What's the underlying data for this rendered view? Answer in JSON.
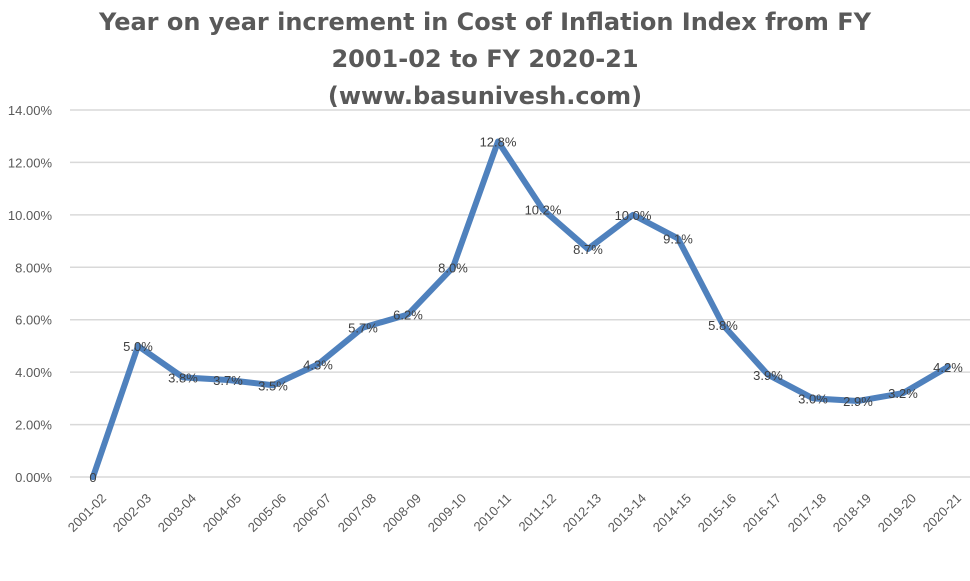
{
  "chart_data": {
    "type": "line",
    "title_lines": [
      "Year on year increment in Cost of Inflation Index from FY",
      "2001-02 to FY 2020-21",
      "(www.basunivesh.com)"
    ],
    "categories": [
      "2001-02",
      "2002-03",
      "2003-04",
      "2004-05",
      "2005-06",
      "2006-07",
      "2007-08",
      "2008-09",
      "2009-10",
      "2010-11",
      "2011-12",
      "2012-13",
      "2013-14",
      "2014-15",
      "2015-16",
      "2016-17",
      "2017-18",
      "2018-19",
      "2019-20",
      "2020-21"
    ],
    "values": [
      0,
      5.0,
      3.8,
      3.7,
      3.5,
      4.3,
      5.7,
      6.2,
      8.0,
      12.8,
      10.2,
      8.7,
      10.0,
      9.1,
      5.8,
      3.9,
      3.0,
      2.9,
      3.2,
      4.2
    ],
    "data_labels": [
      "0",
      "5.0%",
      "3.8%",
      "3.7%",
      "3.5%",
      "4.3%",
      "5.7%",
      "6.2%",
      "8.0%",
      "12.8%",
      "10.2%",
      "8.7%",
      "10.0%",
      "9.1%",
      "5.8%",
      "3.9%",
      "3.0%",
      "2.9%",
      "3.2%",
      "4.2%"
    ],
    "yticks": [
      "0.00%",
      "2.00%",
      "4.00%",
      "6.00%",
      "8.00%",
      "10.00%",
      "12.00%",
      "14.00%"
    ],
    "ylim": [
      0,
      14
    ],
    "grid": true,
    "line_color": "#4f81bd"
  }
}
